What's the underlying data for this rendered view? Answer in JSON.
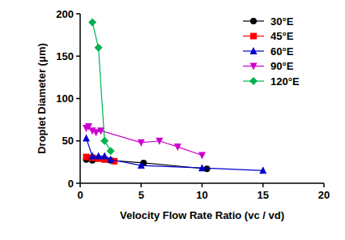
{
  "chart_data": {
    "type": "line",
    "x_label": "Velocity Flow Rate Ratio (vc / vd)",
    "y_label": "Droplet Diameter (μm)",
    "xlim": [
      0,
      20
    ],
    "xticks": [
      0,
      5,
      10,
      15,
      20
    ],
    "ylim": [
      0,
      200
    ],
    "yticks": [
      0,
      50,
      100,
      150,
      200
    ],
    "grid": false,
    "legend": "upper right",
    "series": [
      {
        "name": "30°E",
        "color": "#000000",
        "marker": "circle",
        "x": [
          0.5,
          1,
          2.5,
          5.2,
          10.4
        ],
        "values": [
          28,
          27,
          27,
          24,
          17
        ]
      },
      {
        "name": "45°E",
        "color": "#ff0000",
        "marker": "square",
        "x": [
          0.5,
          1,
          1.5,
          2,
          2.8
        ],
        "values": [
          31,
          30,
          29,
          28,
          26
        ]
      },
      {
        "name": "60°E",
        "color": "#0000cc",
        "marker": "triangle",
        "x": [
          0.5,
          1,
          1.5,
          2,
          2.5,
          5,
          10,
          15
        ],
        "values": [
          53,
          32,
          32,
          32,
          28,
          21,
          18,
          15
        ]
      },
      {
        "name": "90°E",
        "color": "#cc00cc",
        "marker": "triangle-down",
        "x": [
          0.5,
          0.7,
          1,
          1.3,
          1.7,
          5,
          6.5,
          8,
          10
        ],
        "values": [
          65,
          67,
          62,
          60,
          62,
          48,
          50,
          43,
          33
        ]
      },
      {
        "name": "120°E",
        "color": "#00b050",
        "marker": "diamond",
        "x": [
          1,
          1.5,
          2,
          2.5
        ],
        "values": [
          190,
          160,
          50,
          38
        ]
      }
    ]
  }
}
